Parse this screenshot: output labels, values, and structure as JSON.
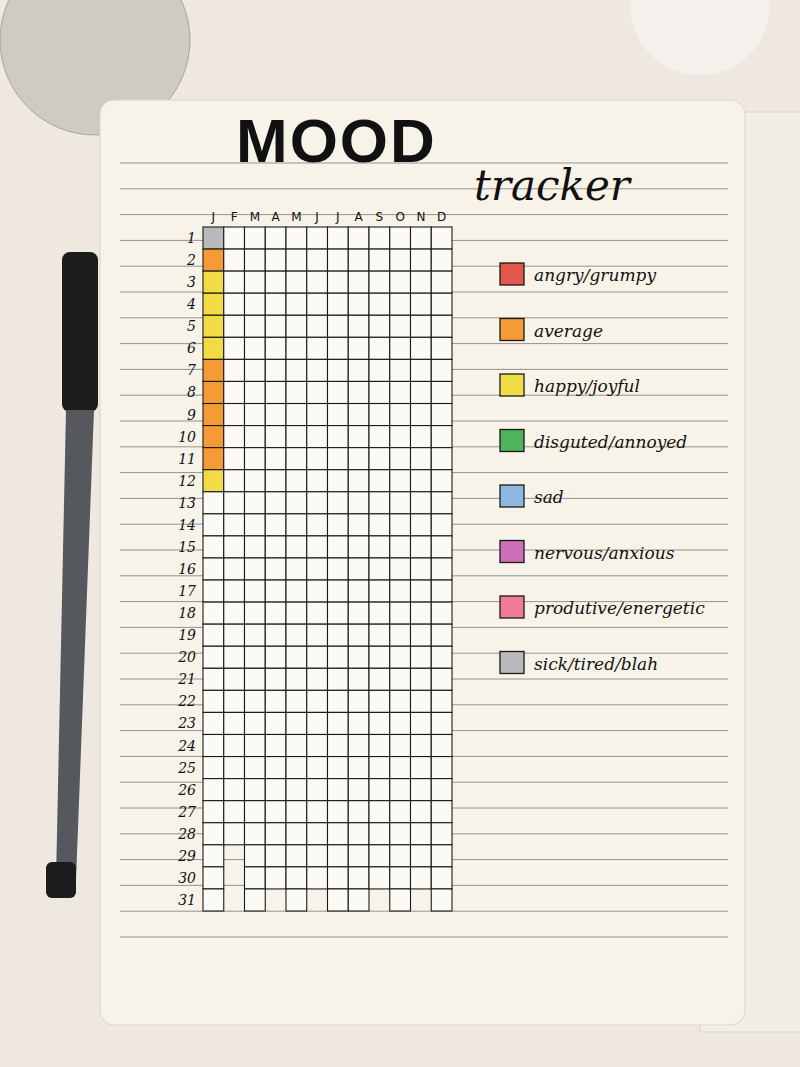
{
  "chart_data": {
    "type": "heatmap",
    "title": "MOOD",
    "subtitle": "tracker",
    "categories": [
      "J",
      "F",
      "M",
      "A",
      "M",
      "J",
      "J",
      "A",
      "S",
      "O",
      "N",
      "D"
    ],
    "days": [
      1,
      2,
      3,
      4,
      5,
      6,
      7,
      8,
      9,
      10,
      11,
      12,
      13,
      14,
      15,
      16,
      17,
      18,
      19,
      20,
      21,
      22,
      23,
      24,
      25,
      26,
      27,
      28,
      29,
      30,
      31
    ],
    "moods": [
      {
        "name": "angry/grumpy",
        "color": "#e2574c"
      },
      {
        "name": "average",
        "color": "#f59b35"
      },
      {
        "name": "happy/joyful",
        "color": "#f2dc45"
      },
      {
        "name": "disguted/annoyed",
        "color": "#4cb45a"
      },
      {
        "name": "sad",
        "color": "#8db8e2"
      },
      {
        "name": "nervous/anxious",
        "color": "#cf6fb9"
      },
      {
        "name": "produtive/energetic",
        "color": "#f07b97"
      },
      {
        "name": "sick/tired/blah",
        "color": "#b9b9b9"
      }
    ],
    "cells": [
      [
        7,
        1,
        2,
        2,
        2,
        2,
        1,
        1,
        1,
        1,
        1,
        2,
        null,
        null,
        null,
        null,
        null,
        null,
        null,
        null,
        null,
        null,
        null,
        null,
        null,
        null,
        null,
        null,
        null,
        null,
        null
      ],
      [
        null,
        null,
        null,
        null,
        null,
        null,
        null,
        null,
        null,
        null,
        null,
        null,
        null,
        null,
        null,
        null,
        null,
        null,
        null,
        null,
        null,
        null,
        null,
        null,
        null,
        null,
        null,
        null
      ],
      [
        null,
        null,
        null,
        null,
        null,
        null,
        null,
        null,
        null,
        null,
        null,
        null,
        null,
        null,
        null,
        null,
        null,
        null,
        null,
        null,
        null,
        null,
        null,
        null,
        null,
        null,
        null,
        null,
        null,
        null,
        null
      ],
      [
        null,
        null,
        null,
        null,
        null,
        null,
        null,
        null,
        null,
        null,
        null,
        null,
        null,
        null,
        null,
        null,
        null,
        null,
        null,
        null,
        null,
        null,
        null,
        null,
        null,
        null,
        null,
        null,
        null,
        null
      ],
      [
        null,
        null,
        null,
        null,
        null,
        null,
        null,
        null,
        null,
        null,
        null,
        null,
        null,
        null,
        null,
        null,
        null,
        null,
        null,
        null,
        null,
        null,
        null,
        null,
        null,
        null,
        null,
        null,
        null,
        null,
        null
      ],
      [
        null,
        null,
        null,
        null,
        null,
        null,
        null,
        null,
        null,
        null,
        null,
        null,
        null,
        null,
        null,
        null,
        null,
        null,
        null,
        null,
        null,
        null,
        null,
        null,
        null,
        null,
        null,
        null,
        null,
        null
      ],
      [
        null,
        null,
        null,
        null,
        null,
        null,
        null,
        null,
        null,
        null,
        null,
        null,
        null,
        null,
        null,
        null,
        null,
        null,
        null,
        null,
        null,
        null,
        null,
        null,
        null,
        null,
        null,
        null,
        null,
        null,
        null
      ],
      [
        null,
        null,
        null,
        null,
        null,
        null,
        null,
        null,
        null,
        null,
        null,
        null,
        null,
        null,
        null,
        null,
        null,
        null,
        null,
        null,
        null,
        null,
        null,
        null,
        null,
        null,
        null,
        null,
        null,
        null,
        null
      ],
      [
        null,
        null,
        null,
        null,
        null,
        null,
        null,
        null,
        null,
        null,
        null,
        null,
        null,
        null,
        null,
        null,
        null,
        null,
        null,
        null,
        null,
        null,
        null,
        null,
        null,
        null,
        null,
        null,
        null,
        null
      ],
      [
        null,
        null,
        null,
        null,
        null,
        null,
        null,
        null,
        null,
        null,
        null,
        null,
        null,
        null,
        null,
        null,
        null,
        null,
        null,
        null,
        null,
        null,
        null,
        null,
        null,
        null,
        null,
        null,
        null,
        null,
        null
      ],
      [
        null,
        null,
        null,
        null,
        null,
        null,
        null,
        null,
        null,
        null,
        null,
        null,
        null,
        null,
        null,
        null,
        null,
        null,
        null,
        null,
        null,
        null,
        null,
        null,
        null,
        null,
        null,
        null,
        null,
        null
      ],
      [
        null,
        null,
        null,
        null,
        null,
        null,
        null,
        null,
        null,
        null,
        null,
        null,
        null,
        null,
        null,
        null,
        null,
        null,
        null,
        null,
        null,
        null,
        null,
        null,
        null,
        null,
        null,
        null,
        null,
        null,
        null
      ]
    ]
  }
}
